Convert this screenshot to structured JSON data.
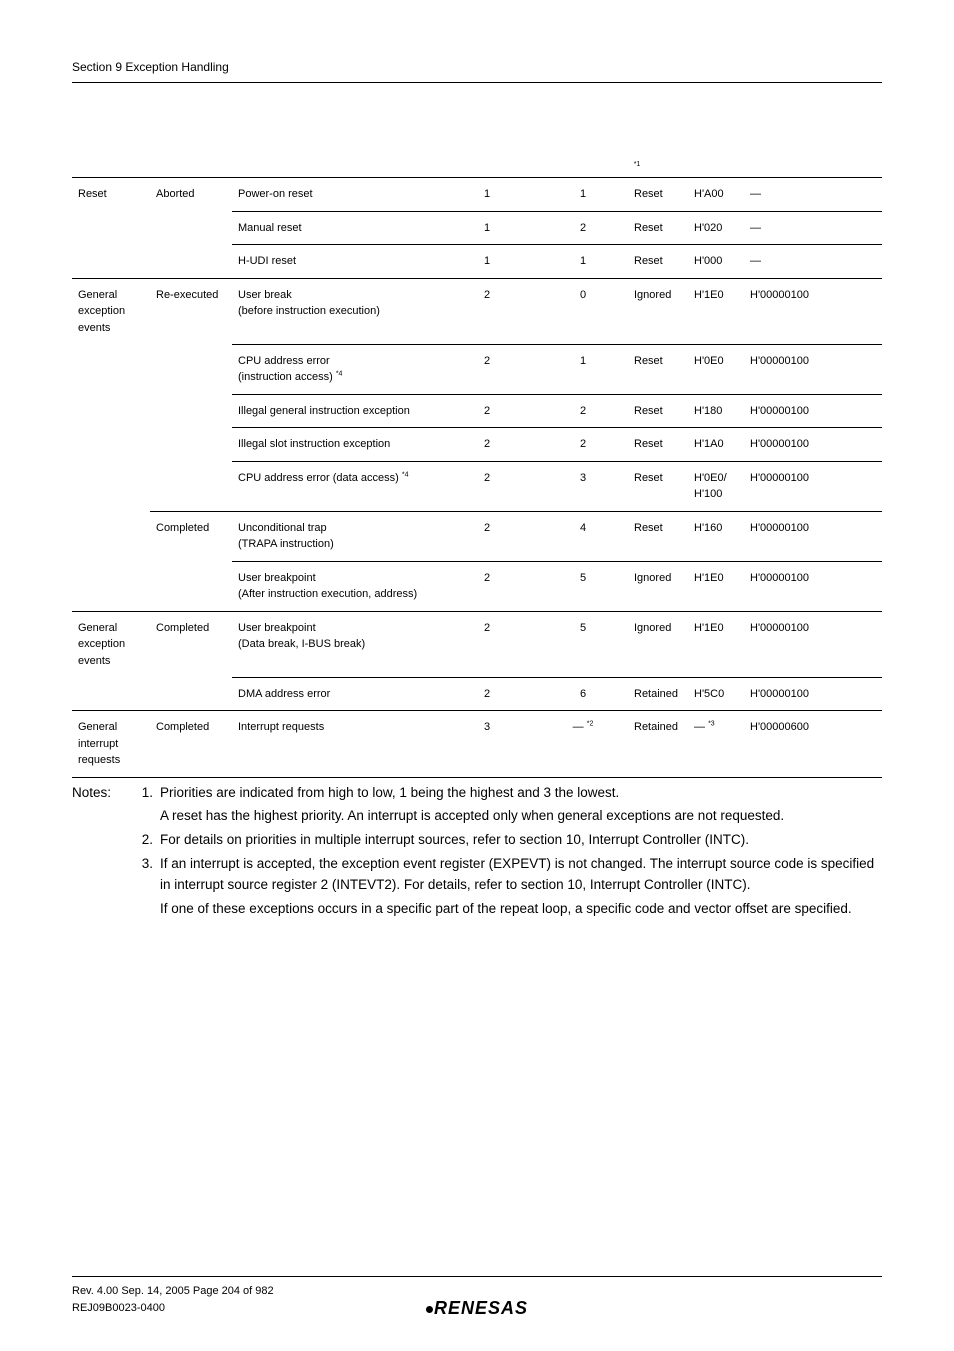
{
  "section_header": "Section 9   Exception Handling",
  "sup_ref_1": "*1",
  "rows": [
    {
      "c1": "Reset",
      "c2": "Aborted",
      "c3": "Power-on reset",
      "c4": "1",
      "c5": "1",
      "c6": "Reset",
      "c7": "H'A00",
      "c8": "—",
      "cls": "bt"
    },
    {
      "c1": "",
      "c2": "",
      "c3": "Manual reset",
      "c4": "1",
      "c5": "2",
      "c6": "Reset",
      "c7": "H'020",
      "c8": "—",
      "cls": "bt3"
    },
    {
      "c1": "",
      "c2": "",
      "c3": "H-UDI reset",
      "c4": "1",
      "c5": "1",
      "c6": "Reset",
      "c7": "H'000",
      "c8": "—",
      "cls": "bt3 bb"
    },
    {
      "c1": "General exception events",
      "c2": "Re-executed",
      "c3": "User break<br>(before instruction execution)",
      "c4": "2",
      "c5": "0",
      "c6": "Ignored",
      "c7": "H'1E0",
      "c8": "H'00000100",
      "cls": ""
    },
    {
      "c1": "",
      "c2": "",
      "c3": "CPU address error<br>(instruction access) <span class=\"sup\">*4</span>",
      "c4": "2",
      "c5": "1",
      "c6": "Reset",
      "c7": "H'0E0",
      "c8": "H'00000100",
      "cls": "bt3"
    },
    {
      "c1": "",
      "c2": "",
      "c3": "Illegal general instruction exception",
      "c4": "2",
      "c5": "2",
      "c6": "Reset",
      "c7": "H'180",
      "c8": "H'00000100",
      "cls": "bt3"
    },
    {
      "c1": "",
      "c2": "",
      "c3": "Illegal slot instruction exception",
      "c4": "2",
      "c5": "2",
      "c6": "Reset",
      "c7": "H'1A0",
      "c8": "H'00000100",
      "cls": "bt3"
    },
    {
      "c1": "",
      "c2": "",
      "c3": "CPU address error (data access) <span class=\"sup\">*4</span>",
      "c4": "2",
      "c5": "3",
      "c6": "Reset",
      "c7": "H'0E0/<br>H'100",
      "c8": "H'00000100",
      "cls": "bt3"
    },
    {
      "c1": "",
      "c2": "Completed",
      "c3": "Unconditional trap<br>(TRAPA instruction)",
      "c4": "2",
      "c5": "4",
      "c6": "Reset",
      "c7": "H'160",
      "c8": "H'00000100",
      "cls": "bt2"
    },
    {
      "c1": "",
      "c2": "",
      "c3": "User breakpoint<br>(After instruction execution, address)",
      "c4": "2",
      "c5": "5",
      "c6": "Ignored",
      "c7": "H'1E0",
      "c8": "H'00000100",
      "cls": "bt3 bb"
    },
    {
      "c1": "General exception events",
      "c2": "Completed",
      "c3": "User breakpoint<br>(Data break, I-BUS break)",
      "c4": "2",
      "c5": "5",
      "c6": "Ignored",
      "c7": "H'1E0",
      "c8": "H'00000100",
      "cls": ""
    },
    {
      "c1": "",
      "c2": "",
      "c3": "DMA address error",
      "c4": "2",
      "c5": "6",
      "c6": "Retained",
      "c7": "H'5C0",
      "c8": "H'00000100",
      "cls": "bt3 bb"
    },
    {
      "c1": "General interrupt requests",
      "c2": "Completed",
      "c3": "Interrupt requests",
      "c4": "3",
      "c5": "— <span class=\"sup\">*2</span>",
      "c6": "Retained",
      "c7": "— <span class=\"sup\">*3</span>",
      "c8": "H'00000600",
      "cls": "bb"
    }
  ],
  "notes_label": "Notes:",
  "notes": [
    {
      "n": "1.",
      "t": "Priorities are indicated from high to low, 1 being the highest and 3 the lowest."
    },
    {
      "n": "",
      "t": "A reset has the highest priority. An interrupt is accepted only when general exceptions are not requested."
    },
    {
      "n": "2.",
      "t": "For details on priorities in multiple interrupt sources, refer to section 10, Interrupt Controller (INTC)."
    },
    {
      "n": "3.",
      "t": "If an interrupt is accepted, the exception event register (EXPEVT) is not changed. The interrupt source code is specified in interrupt source register 2 (INTEVT2). For details, refer to section 10, Interrupt Controller (INTC)."
    },
    {
      "n": "",
      "t": "If one of these exceptions occurs in a specific part of the repeat loop, a specific code and vector offset are specified."
    }
  ],
  "footer_rev": "Rev. 4.00  Sep. 14, 2005  Page 204 of 982",
  "footer_code": "REJ09B0023-0400",
  "logo_text": "RENESAS"
}
